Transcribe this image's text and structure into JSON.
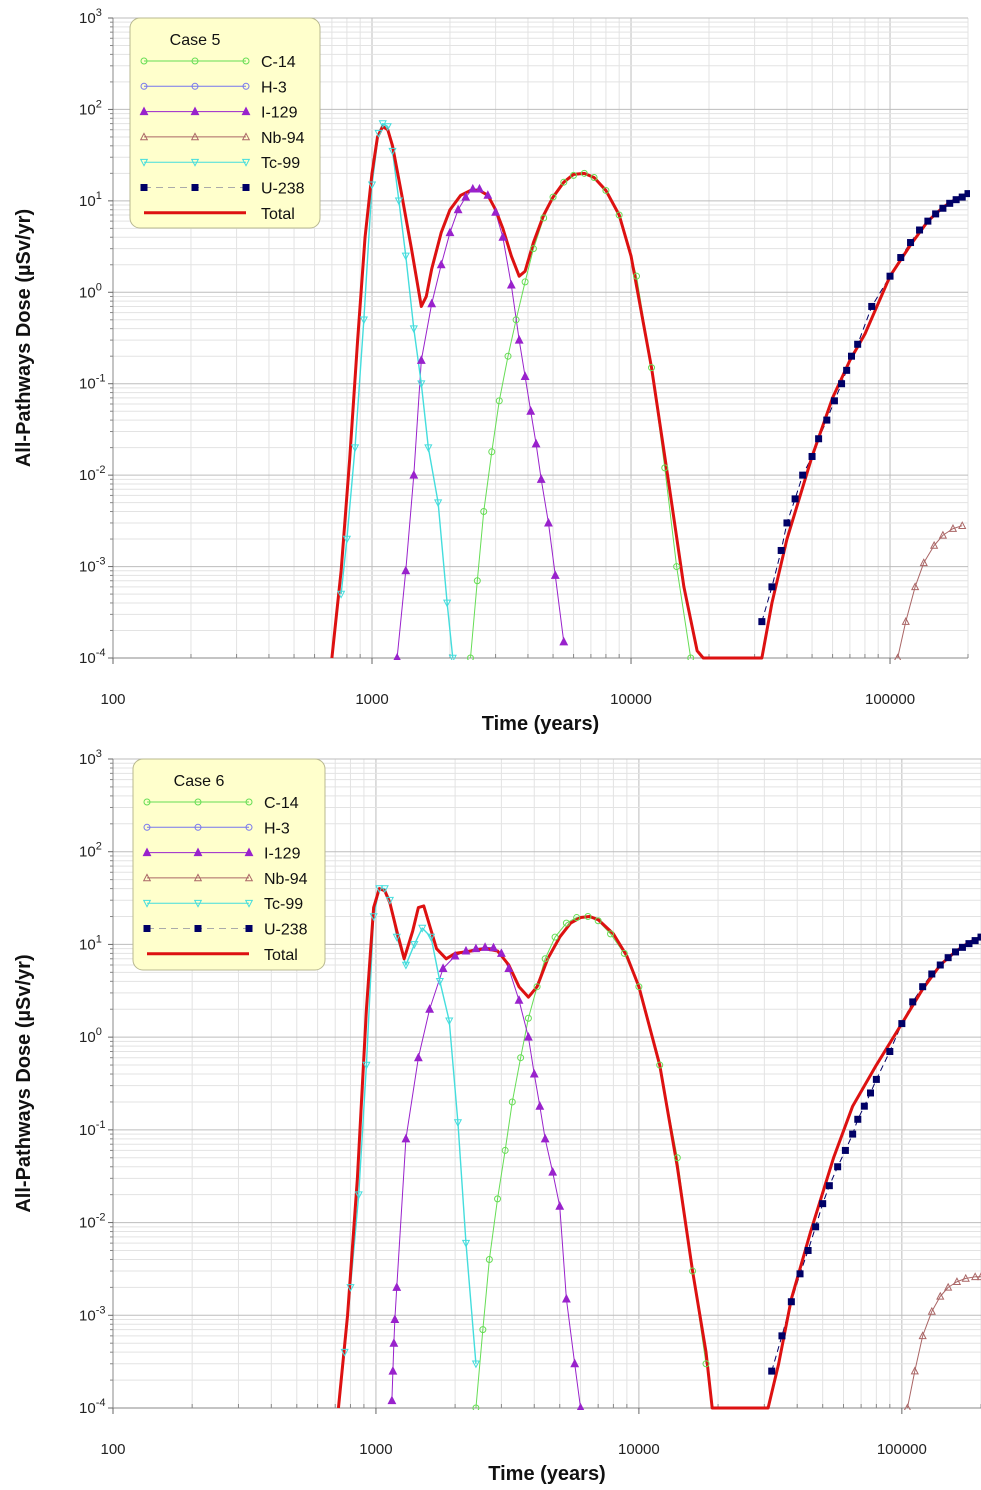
{
  "chart_data": [
    {
      "type": "line",
      "legend_title": "Case 5",
      "xlabel": "Time (years)",
      "ylabel": "All-Pathways Dose (µSv/yr)",
      "x_scale": "log",
      "y_scale": "log",
      "xlim": [
        100,
        200000
      ],
      "ylim": [
        0.0001,
        1000
      ],
      "x_ticks": [
        "100",
        "1000",
        "10000",
        "100000"
      ],
      "y_ticks": [
        {
          "base": "10",
          "exp": "3"
        },
        {
          "base": "10",
          "exp": "2"
        },
        {
          "base": "10",
          "exp": "1"
        },
        {
          "base": "10",
          "exp": "0"
        },
        {
          "base": "10",
          "exp": "-1"
        },
        {
          "base": "10",
          "exp": "-2"
        },
        {
          "base": "10",
          "exp": "-3"
        },
        {
          "base": "10",
          "exp": "-4"
        }
      ],
      "grid": true,
      "legend_position": "top-left",
      "series": [
        {
          "name": "C-14",
          "color": "#66dd55",
          "marker": "circle-open",
          "x": [
            2400,
            2550,
            2700,
            2900,
            3100,
            3350,
            3600,
            3900,
            4200,
            4600,
            5000,
            5500,
            6000,
            6600,
            7200,
            8000,
            9000,
            10500,
            12000,
            13500,
            15000,
            17000
          ],
          "y": [
            0.0001,
            0.0007,
            0.004,
            0.018,
            0.065,
            0.2,
            0.5,
            1.3,
            3.0,
            6.5,
            11,
            16,
            19,
            20,
            18,
            13,
            7,
            1.5,
            0.15,
            0.012,
            0.001,
            0.0001
          ]
        },
        {
          "name": "H-3",
          "color": "#7777ee",
          "marker": "circle-open",
          "x": [],
          "y": []
        },
        {
          "name": "I-129",
          "color": "#9922cc",
          "marker": "triangle-filled",
          "x": [
            1250,
            1350,
            1450,
            1550,
            1700,
            1850,
            2000,
            2150,
            2300,
            2450,
            2600,
            2800,
            3000,
            3200,
            3450,
            3700,
            3900,
            4100,
            4300,
            4500,
            4800,
            5100,
            5500
          ],
          "y": [
            0.0001,
            0.0009,
            0.01,
            0.18,
            0.75,
            2.0,
            4.5,
            8,
            11,
            13.5,
            13.5,
            11.5,
            7.5,
            4,
            1.2,
            0.3,
            0.12,
            0.05,
            0.022,
            0.009,
            0.003,
            0.0008,
            0.00015
          ]
        },
        {
          "name": "Nb-94",
          "color": "#aa6666",
          "marker": "triangle-open",
          "x": [
            107000,
            115000,
            125000,
            135000,
            148000,
            160000,
            175000,
            190000
          ],
          "y": [
            0.0001,
            0.00025,
            0.0006,
            0.0011,
            0.0017,
            0.0022,
            0.0026,
            0.0028
          ]
        },
        {
          "name": "Tc-99",
          "color": "#44dddd",
          "marker": "triangle-down-open",
          "x": [
            760,
            800,
            860,
            930,
            1000,
            1060,
            1100,
            1150,
            1200,
            1270,
            1350,
            1450,
            1550,
            1650,
            1800,
            1950,
            2050
          ],
          "y": [
            0.0005,
            0.002,
            0.02,
            0.5,
            15,
            55,
            70,
            65,
            35,
            10,
            2.5,
            0.4,
            0.1,
            0.02,
            0.005,
            0.0004,
            0.0001
          ]
        },
        {
          "name": "U-238",
          "color": "#000066",
          "marker": "square-filled",
          "x": [
            32000,
            35000,
            38000,
            40000,
            43000,
            46000,
            50000,
            53000,
            57000,
            61000,
            65000,
            68000,
            71000,
            75000,
            85000,
            100000,
            110000,
            120000,
            130000,
            140000,
            150000,
            160000,
            170000,
            180000,
            190000,
            200000
          ],
          "y": [
            0.00025,
            0.0006,
            0.0015,
            0.003,
            0.0055,
            0.01,
            0.016,
            0.025,
            0.04,
            0.065,
            0.1,
            0.14,
            0.2,
            0.27,
            0.7,
            1.5,
            2.4,
            3.5,
            4.8,
            6,
            7.2,
            8.3,
            9.4,
            10.3,
            11,
            12
          ]
        },
        {
          "name": "Total",
          "color": "#dd1111",
          "marker": "none",
          "x": [
            700,
            760,
            820,
            880,
            940,
            1000,
            1050,
            1100,
            1150,
            1200,
            1300,
            1420,
            1550,
            1620,
            1700,
            1850,
            2000,
            2200,
            2400,
            2600,
            2800,
            3000,
            3200,
            3450,
            3700,
            3900,
            4200,
            4600,
            5000,
            5500,
            6000,
            6600,
            7200,
            8000,
            9000,
            10000,
            12000,
            14000,
            16000,
            18000,
            19000,
            25000,
            32000,
            35000,
            40000,
            50000,
            60000,
            70000,
            80000,
            100000,
            120000,
            140000,
            160000,
            180000,
            200000
          ],
          "y": [
            0.0001,
            0.0009,
            0.015,
            0.3,
            4,
            20,
            50,
            65,
            60,
            40,
            12,
            3,
            0.7,
            0.9,
            1.8,
            4.5,
            8,
            11.5,
            13,
            13,
            11.5,
            8,
            5,
            2.5,
            1.5,
            1.7,
            3.5,
            7,
            11,
            16,
            19.5,
            20,
            18,
            13,
            7,
            2.5,
            0.15,
            0.008,
            0.0006,
            0.00012,
            0.0001,
            0.0001,
            0.0001,
            0.0004,
            0.002,
            0.016,
            0.07,
            0.18,
            0.35,
            1.5,
            3.3,
            6,
            8.5,
            10.5,
            12
          ]
        }
      ]
    },
    {
      "type": "line",
      "legend_title": "Case 6",
      "xlabel": "Time (years)",
      "ylabel": "All-Pathways Dose (µSv/yr)",
      "x_scale": "log",
      "y_scale": "log",
      "xlim": [
        100,
        200000
      ],
      "ylim": [
        0.0001,
        1000
      ],
      "x_ticks": [
        "100",
        "1000",
        "10000",
        "100000"
      ],
      "y_ticks": [
        {
          "base": "10",
          "exp": "3"
        },
        {
          "base": "10",
          "exp": "2"
        },
        {
          "base": "10",
          "exp": "1"
        },
        {
          "base": "10",
          "exp": "0"
        },
        {
          "base": "10",
          "exp": "-1"
        },
        {
          "base": "10",
          "exp": "-2"
        },
        {
          "base": "10",
          "exp": "-3"
        },
        {
          "base": "10",
          "exp": "-4"
        }
      ],
      "grid": true,
      "legend_position": "top-left",
      "series": [
        {
          "name": "C-14",
          "color": "#66dd55",
          "marker": "circle-open",
          "x": [
            2400,
            2550,
            2700,
            2900,
            3100,
            3300,
            3550,
            3800,
            4100,
            4400,
            4800,
            5300,
            5800,
            6400,
            7000,
            7800,
            8800,
            10000,
            12000,
            14000,
            16000,
            18000
          ],
          "y": [
            0.0001,
            0.0007,
            0.004,
            0.018,
            0.06,
            0.2,
            0.6,
            1.6,
            3.5,
            7,
            12,
            17,
            19.5,
            20,
            18,
            13,
            8,
            3.5,
            0.5,
            0.05,
            0.003,
            0.0003
          ]
        },
        {
          "name": "H-3",
          "color": "#7777ee",
          "marker": "circle-open",
          "x": [],
          "y": []
        },
        {
          "name": "I-129",
          "color": "#9922cc",
          "marker": "triangle-filled",
          "x": [
            1150,
            1160,
            1170,
            1180,
            1200,
            1300,
            1450,
            1600,
            1800,
            2000,
            2200,
            2400,
            2600,
            2800,
            3000,
            3200,
            3500,
            3800,
            4000,
            4200,
            4400,
            4700,
            5000,
            5300,
            5700,
            6000
          ],
          "y": [
            0.00012,
            0.00025,
            0.0005,
            0.0009,
            0.002,
            0.08,
            0.6,
            2.0,
            5.5,
            7.5,
            8.5,
            9,
            9.3,
            9.2,
            8,
            5.5,
            2.5,
            1.0,
            0.4,
            0.18,
            0.08,
            0.035,
            0.015,
            0.0015,
            0.0003,
            0.0001
          ]
        },
        {
          "name": "Nb-94",
          "color": "#aa6666",
          "marker": "triangle-open",
          "x": [
            105000,
            112000,
            120000,
            130000,
            140000,
            150000,
            162000,
            175000,
            190000,
            200000
          ],
          "y": [
            0.0001,
            0.00025,
            0.0006,
            0.0011,
            0.0016,
            0.002,
            0.0023,
            0.0025,
            0.0026,
            0.0026
          ]
        },
        {
          "name": "Tc-99",
          "color": "#44dddd",
          "marker": "triangle-down-open",
          "x": [
            760,
            800,
            860,
            920,
            980,
            1030,
            1080,
            1130,
            1200,
            1300,
            1400,
            1500,
            1620,
            1750,
            1900,
            2050,
            2200,
            2400
          ],
          "y": [
            0.0004,
            0.002,
            0.02,
            0.5,
            20,
            40,
            40,
            30,
            12,
            6,
            10,
            15,
            12,
            4,
            1.5,
            0.12,
            0.006,
            0.0003
          ]
        },
        {
          "name": "U-238",
          "color": "#000066",
          "marker": "square-filled",
          "x": [
            32000,
            35000,
            38000,
            41000,
            44000,
            47000,
            50000,
            53000,
            57000,
            61000,
            65000,
            68000,
            72000,
            76000,
            80000,
            90000,
            100000,
            110000,
            120000,
            130000,
            140000,
            150000,
            160000,
            170000,
            180000,
            190000,
            200000
          ],
          "y": [
            0.00025,
            0.0006,
            0.0014,
            0.0028,
            0.005,
            0.009,
            0.016,
            0.025,
            0.04,
            0.06,
            0.09,
            0.13,
            0.18,
            0.25,
            0.35,
            0.7,
            1.4,
            2.4,
            3.5,
            4.8,
            6,
            7.2,
            8.3,
            9.3,
            10.2,
            11,
            12
          ]
        },
        {
          "name": "Total",
          "color": "#dd1111",
          "marker": "none",
          "x": [
            720,
            780,
            850,
            920,
            980,
            1030,
            1080,
            1130,
            1200,
            1280,
            1380,
            1450,
            1520,
            1600,
            1700,
            1850,
            2000,
            2300,
            2600,
            2900,
            3200,
            3500,
            3800,
            4100,
            4500,
            5000,
            5500,
            6000,
            6500,
            7000,
            8000,
            9000,
            10000,
            12000,
            14000,
            16000,
            18000,
            19000,
            25000,
            31000,
            34000,
            38000,
            45000,
            55000,
            65000,
            80000,
            100000,
            120000,
            140000,
            160000,
            180000,
            200000
          ],
          "y": [
            0.0001,
            0.001,
            0.03,
            2,
            25,
            40,
            38,
            28,
            14,
            7,
            14,
            25,
            26,
            16,
            9,
            7,
            8,
            8.5,
            9,
            8.5,
            6,
            3.5,
            2.7,
            3.5,
            7,
            12,
            17,
            19.5,
            20,
            18.5,
            13,
            7.5,
            3.5,
            0.5,
            0.04,
            0.003,
            0.0004,
            0.0001,
            0.0001,
            0.0001,
            0.0003,
            0.0015,
            0.008,
            0.05,
            0.18,
            0.5,
            1.4,
            3.3,
            6,
            8.4,
            10.5,
            12
          ]
        }
      ]
    }
  ]
}
